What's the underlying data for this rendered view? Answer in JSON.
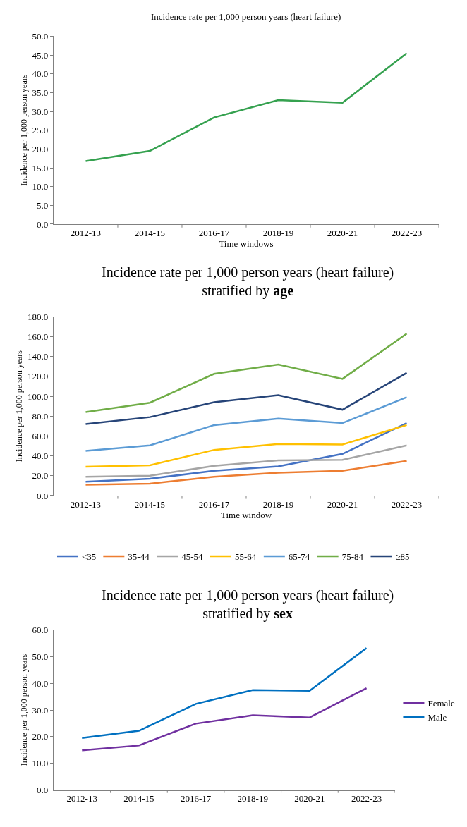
{
  "chart_data": [
    {
      "type": "line",
      "title": "Incidence rate per 1,000 person years (heart failure)",
      "xlabel": "Time windows",
      "ylabel": "Incidence per 1,000 person years",
      "categories": [
        "2012-13",
        "2014-15",
        "2016-17",
        "2018-19",
        "2020-21",
        "2022-23"
      ],
      "series": [
        {
          "color": "#35a14f",
          "values": [
            16.8,
            19.5,
            28.4,
            33.0,
            32.3,
            45.5
          ]
        }
      ],
      "ylim": [
        0,
        50
      ],
      "yticks": [
        {
          "value": 0,
          "label": "0.0"
        },
        {
          "value": 5,
          "label": "5.0"
        },
        {
          "value": 10,
          "label": "10.0"
        },
        {
          "value": 15,
          "label": "15.0"
        },
        {
          "value": 20,
          "label": "20.0"
        },
        {
          "value": 25,
          "label": "25.0"
        },
        {
          "value": 30,
          "label": "30.0"
        },
        {
          "value": 35,
          "label": "35.0"
        },
        {
          "value": 40,
          "label": "40.0"
        },
        {
          "value": 45,
          "label": "45.0"
        },
        {
          "value": 50,
          "label": "50.0"
        }
      ],
      "grid": false
    },
    {
      "type": "line",
      "title": "Incidence rate per 1,000 person years (heart failure)",
      "subtitle": "stratified by age",
      "xlabel": "Time window",
      "ylabel": "Incidence per 1,000 person years",
      "categories": [
        "2012-13",
        "2014-15",
        "2016-17",
        "2018-19",
        "2020-21",
        "2022-23"
      ],
      "series": [
        {
          "name": "<35",
          "color": "#4472c4",
          "values": [
            14,
            17,
            25,
            29.5,
            42,
            73
          ]
        },
        {
          "name": "35-44",
          "color": "#ed7d31",
          "values": [
            11,
            12,
            19,
            23,
            25,
            35
          ]
        },
        {
          "name": "45-54",
          "color": "#a5a5a5",
          "values": [
            19,
            20,
            30,
            35.5,
            36,
            50.5
          ]
        },
        {
          "name": "55-64",
          "color": "#ffc000",
          "values": [
            29,
            30.5,
            46,
            52,
            51.5,
            71
          ]
        },
        {
          "name": "65-74",
          "color": "#5b9bd5",
          "values": [
            45,
            50.5,
            71,
            77.5,
            73,
            99
          ]
        },
        {
          "name": "75-84",
          "color": "#70ad47",
          "values": [
            84,
            93.5,
            122.5,
            132,
            117.5,
            163
          ]
        },
        {
          "name": "≥85",
          "color": "#264478",
          "values": [
            72,
            79,
            94,
            101,
            86.5,
            123.5
          ]
        }
      ],
      "ylim": [
        0,
        180
      ],
      "yticks": [
        {
          "value": 0,
          "label": "0.0"
        },
        {
          "value": 20,
          "label": "20.0"
        },
        {
          "value": 40,
          "label": "40.0"
        },
        {
          "value": 60,
          "label": "60.0"
        },
        {
          "value": 80,
          "label": "80.0"
        },
        {
          "value": 100,
          "label": "100.0"
        },
        {
          "value": 120,
          "label": "120.0"
        },
        {
          "value": 140,
          "label": "140.0"
        },
        {
          "value": 160,
          "label": "160.0"
        },
        {
          "value": 180,
          "label": "180.0"
        }
      ],
      "grid": false,
      "legend": "bottom"
    },
    {
      "type": "line",
      "title": "Incidence rate per 1,000 person years (heart failure)",
      "subtitle": "stratified by sex",
      "ylabel": "Incidence per 1,000 person years",
      "categories": [
        "2012-13",
        "2014-15",
        "2016-17",
        "2018-19",
        "2020-21",
        "2022-23"
      ],
      "series": [
        {
          "name": "Female",
          "color": "#7030a0",
          "values": [
            14.9,
            16.7,
            24.9,
            28.0,
            27.2,
            38.2
          ]
        },
        {
          "name": "Male",
          "color": "#0070c0",
          "values": [
            19.5,
            22.2,
            32.3,
            37.5,
            37.2,
            53.2
          ]
        }
      ],
      "ylim": [
        0,
        60
      ],
      "yticks": [
        {
          "value": 0,
          "label": "0.0"
        },
        {
          "value": 10,
          "label": "10.0"
        },
        {
          "value": 20,
          "label": "20.0"
        },
        {
          "value": 30,
          "label": "30.0"
        },
        {
          "value": 40,
          "label": "40.0"
        },
        {
          "value": 50,
          "label": "50.0"
        },
        {
          "value": 60,
          "label": "60.0"
        }
      ],
      "grid": false,
      "legend": "right"
    }
  ]
}
